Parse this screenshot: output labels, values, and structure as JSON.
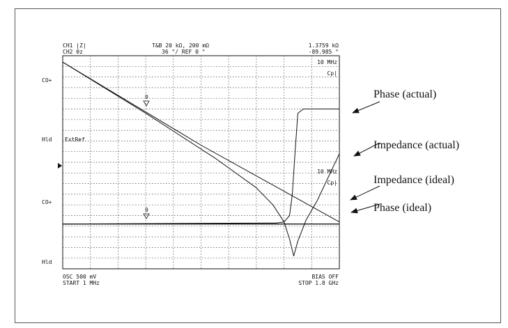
{
  "screen": {
    "header": {
      "ch1": "CH1 |Z|",
      "ch2": "CH2 θz",
      "center_top": "T&B  20 kΩ, 200 mΩ",
      "center_bottom": "36 °/ REF 0 °",
      "marker_value_top": "1.3759 kΩ",
      "marker_value_bottom": "-89.985 °"
    },
    "upper_right": {
      "freq": "10 MHz",
      "mode": "Cp|"
    },
    "lower_right": {
      "freq": "10 MHz",
      "mode": "Cp|"
    },
    "left_labels": {
      "co_upper": "CO+",
      "hld_upper": "Hld",
      "extref": "ExtRef",
      "co_lower": "CO+",
      "hld_lower": "Hld"
    },
    "marker_glyph": "0",
    "footer": {
      "osc": "OSC  500 mV",
      "start": "START  1 MHz",
      "bias": "BIAS  OFF",
      "stop": "STOP  1.8 GHz"
    }
  },
  "callouts": {
    "phase_actual": "Phase (actual)",
    "impedance_actual": "Impedance (actual)",
    "impedance_ideal": "Impedance (ideal)",
    "phase_ideal": "Phase (ideal)"
  },
  "chart_data": {
    "type": "line",
    "x_range": [
      0,
      1
    ],
    "y_range": [
      0,
      1
    ],
    "grid": true,
    "series": [
      {
        "name": "Impedance (ideal)",
        "x": [
          0,
          0.5,
          1
        ],
        "y": [
          0.97,
          0.58,
          0.22
        ]
      },
      {
        "name": "Impedance (actual)",
        "x": [
          0,
          0.3,
          0.55,
          0.7,
          0.76,
          0.8,
          0.82,
          0.835,
          0.85,
          0.88,
          0.92,
          1
        ],
        "y": [
          0.97,
          0.73,
          0.52,
          0.38,
          0.3,
          0.22,
          0.14,
          0.06,
          0.13,
          0.23,
          0.32,
          0.54
        ]
      },
      {
        "name": "Phase (actual)",
        "x": [
          0,
          0.77,
          0.8,
          0.82,
          0.83,
          0.84,
          0.85,
          0.87,
          1
        ],
        "y": [
          0.21,
          0.215,
          0.22,
          0.25,
          0.35,
          0.55,
          0.73,
          0.75,
          0.75
        ]
      },
      {
        "name": "Phase (ideal)",
        "x": [
          0,
          1
        ],
        "y": [
          0.21,
          0.21
        ]
      }
    ]
  }
}
